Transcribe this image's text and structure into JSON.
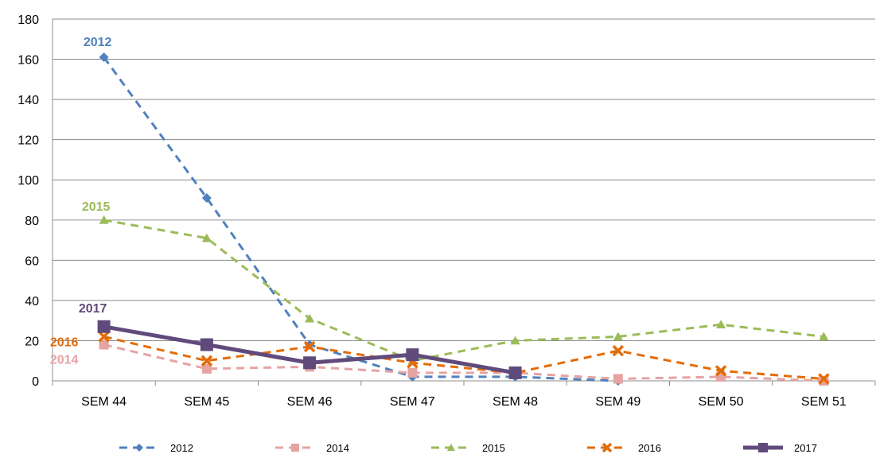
{
  "chart_data": {
    "type": "line",
    "categories": [
      "SEM 44",
      "SEM 45",
      "SEM 46",
      "SEM 47",
      "SEM 48",
      "SEM 49",
      "SEM 50",
      "SEM 51"
    ],
    "ylim": [
      0,
      180
    ],
    "yticks": [
      0,
      20,
      40,
      60,
      80,
      100,
      120,
      140,
      160,
      180
    ],
    "grid": true,
    "legend_position": "bottom",
    "series": [
      {
        "name": "2012",
        "color": "#4f81bd",
        "marker": "diamond",
        "dashed": true,
        "values": [
          161,
          91,
          18,
          2,
          2,
          0,
          null,
          null
        ]
      },
      {
        "name": "2014",
        "color": "#e6a3a3",
        "marker": "square",
        "dashed": true,
        "values": [
          18,
          6,
          7,
          4,
          4,
          1,
          2,
          0
        ]
      },
      {
        "name": "2015",
        "color": "#9bbb59",
        "marker": "triangle",
        "dashed": true,
        "values": [
          80,
          71,
          31,
          10,
          20,
          22,
          28,
          22
        ]
      },
      {
        "name": "2016",
        "color": "#e36c09",
        "marker": "x",
        "dashed": true,
        "values": [
          22,
          10,
          17,
          9,
          4,
          15,
          5,
          1
        ]
      },
      {
        "name": "2017",
        "color": "#604a7b",
        "marker": "square",
        "dashed": false,
        "values": [
          27,
          18,
          9,
          13,
          4,
          null,
          null,
          null
        ]
      }
    ],
    "annotations": [
      {
        "text": "2012",
        "color": "#4f81bd",
        "series": "2012"
      },
      {
        "text": "2015",
        "color": "#9bbb59",
        "series": "2015"
      },
      {
        "text": "2017",
        "color": "#604a7b",
        "series": "2017"
      },
      {
        "text": "2016",
        "color": "#e36c09",
        "series": "2016"
      },
      {
        "text": "2014",
        "color": "#e6a3a3",
        "series": "2014"
      }
    ]
  }
}
